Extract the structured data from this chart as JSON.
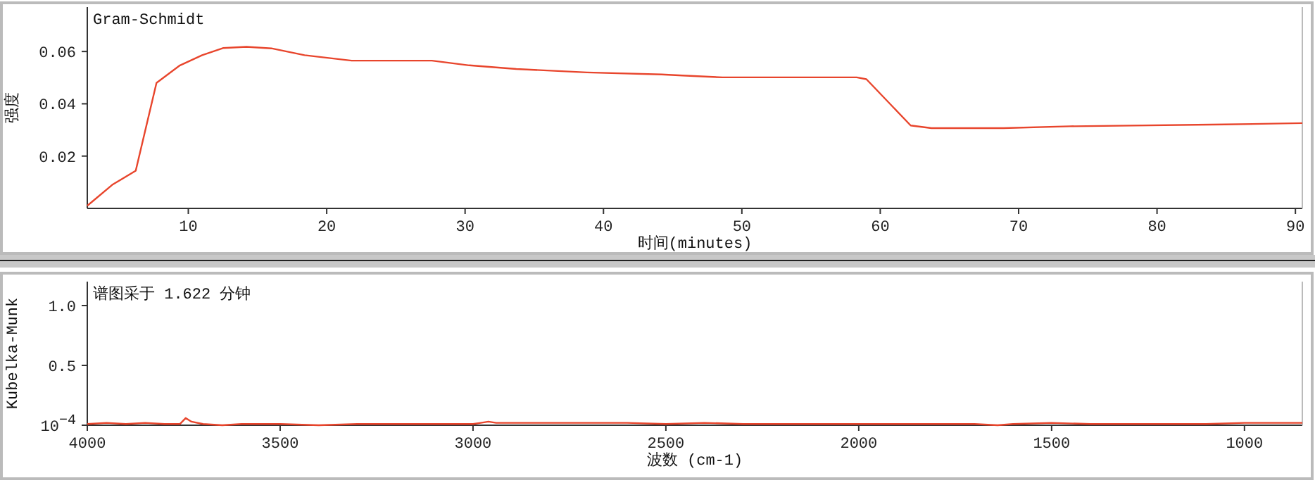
{
  "chart_data": [
    {
      "type": "line",
      "title": "Gram-Schmidt",
      "xlabel": "时间(minutes)",
      "ylabel": "强度",
      "x": [
        2.7,
        4.5,
        6.2,
        7.7,
        9.4,
        11.0,
        12.5,
        14.2,
        16.0,
        18.4,
        21.8,
        27.6,
        30.3,
        33.7,
        38.8,
        44.2,
        45.7,
        48.6,
        58.3,
        59.0,
        62.2,
        63.7,
        68.9,
        73.7,
        84.9,
        90.5
      ],
      "series": [
        {
          "color": "#e8452c",
          "values": [
            0.001,
            0.009,
            0.0144,
            0.048,
            0.0547,
            0.0586,
            0.0613,
            0.0618,
            0.0612,
            0.0586,
            0.0565,
            0.0565,
            0.0547,
            0.0533,
            0.052,
            0.0512,
            0.0508,
            0.0501,
            0.0501,
            0.0494,
            0.0317,
            0.0307,
            0.0307,
            0.0314,
            0.0321,
            0.0326
          ]
        }
      ],
      "xlim": [
        2.7,
        90.5
      ],
      "ylim": [
        0,
        0.077
      ],
      "xticks": [
        10,
        20,
        30,
        40,
        50,
        60,
        70,
        80,
        90
      ],
      "yticks": [
        0.02,
        0.04,
        0.06
      ]
    },
    {
      "type": "line",
      "title": "谱图采于 1.622 分钟",
      "xlabel": "波数 (cm-1)",
      "ylabel": "Kubelka-Munk",
      "x": [
        4000,
        3950,
        3900,
        3850,
        3800,
        3760,
        3745,
        3730,
        3700,
        3650,
        3600,
        3500,
        3400,
        3300,
        3200,
        3100,
        3000,
        2980,
        2960,
        2940,
        2900,
        2800,
        2700,
        2600,
        2500,
        2400,
        2300,
        2200,
        2100,
        2000,
        1900,
        1800,
        1750,
        1700,
        1640,
        1600,
        1500,
        1400,
        1300,
        1200,
        1100,
        1000,
        900,
        850
      ],
      "series": [
        {
          "color": "#e8452c",
          "values": [
            0.01,
            0.02,
            0.01,
            0.02,
            0.01,
            0.01,
            0.06,
            0.03,
            0.01,
            0.0,
            0.01,
            0.01,
            0.0,
            0.01,
            0.01,
            0.01,
            0.01,
            0.02,
            0.03,
            0.02,
            0.02,
            0.02,
            0.02,
            0.02,
            0.01,
            0.02,
            0.01,
            0.01,
            0.01,
            0.01,
            0.01,
            0.01,
            0.01,
            0.01,
            0.0,
            0.01,
            0.02,
            0.01,
            0.01,
            0.01,
            0.01,
            0.02,
            0.02,
            0.02
          ]
        }
      ],
      "xlim": [
        4000,
        850
      ],
      "ylim": [
        0,
        1.2
      ],
      "xticks": [
        4000,
        3500,
        3000,
        2500,
        2000,
        1500,
        1000
      ],
      "yticks": [
        {
          "value": 0.0001,
          "label": "10$^{−4}$"
        },
        0.5,
        {
          "value": 1.0,
          "label": "1.0"
        }
      ]
    }
  ]
}
